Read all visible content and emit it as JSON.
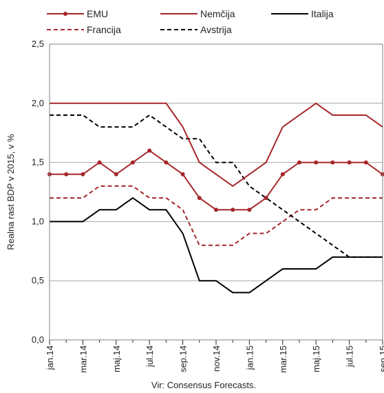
{
  "chart_data": {
    "type": "line",
    "categories": [
      "jan.14",
      "feb.14",
      "mar.14",
      "apr.14",
      "maj.14",
      "jun.14",
      "jul.14",
      "avg.14",
      "sep.14",
      "okt.14",
      "nov.14",
      "dec.14",
      "jan.15",
      "feb.15",
      "mar.15",
      "apr.15",
      "maj.15",
      "jun.15",
      "jul.15",
      "avg.15",
      "sep.15"
    ],
    "tick_labels": [
      "jan.14",
      "mar.14",
      "maj.14",
      "jul.14",
      "sep.14",
      "nov.14",
      "jan.15",
      "mar.15",
      "maj.15",
      "jul.15",
      "sep.15"
    ],
    "ylabel": "Realna rast BDP v 2015, v %",
    "ylim": [
      0,
      2.5
    ],
    "yticks": [
      "0,0",
      "0,5",
      "1,0",
      "1,5",
      "2,0",
      "2,5"
    ],
    "grid": true,
    "legend_position": "top",
    "source": "Vir: Consensus Forecasts.",
    "series": [
      {
        "name": "EMU",
        "color": "#a6262a",
        "style": "solid-markers",
        "values": [
          1.4,
          1.4,
          1.4,
          1.5,
          1.4,
          1.5,
          1.6,
          1.5,
          1.4,
          1.2,
          1.1,
          1.1,
          1.1,
          1.2,
          1.4,
          1.5,
          1.5,
          1.5,
          1.5,
          1.5,
          1.4
        ]
      },
      {
        "name": "Nemčija",
        "color": "#a6262a",
        "style": "solid",
        "values": [
          2.0,
          2.0,
          2.0,
          2.0,
          2.0,
          2.0,
          2.0,
          2.0,
          1.8,
          1.5,
          1.4,
          1.3,
          1.4,
          1.5,
          1.8,
          1.9,
          2.0,
          1.9,
          1.9,
          1.9,
          1.8
        ]
      },
      {
        "name": "Italija",
        "color": "#000000",
        "style": "solid",
        "values": [
          1.0,
          1.0,
          1.0,
          1.1,
          1.1,
          1.2,
          1.1,
          1.1,
          0.9,
          0.5,
          0.5,
          0.4,
          0.4,
          0.5,
          0.6,
          0.6,
          0.6,
          0.7,
          0.7,
          0.7,
          0.7
        ]
      },
      {
        "name": "Francija",
        "color": "#a6262a",
        "style": "dashed",
        "values": [
          1.2,
          1.2,
          1.2,
          1.3,
          1.3,
          1.3,
          1.2,
          1.2,
          1.1,
          0.8,
          0.8,
          0.8,
          0.9,
          0.9,
          1.0,
          1.1,
          1.1,
          1.2,
          1.2,
          1.2,
          1.2
        ]
      },
      {
        "name": "Avstrija",
        "color": "#000000",
        "style": "dashed",
        "values": [
          1.9,
          1.9,
          1.9,
          1.8,
          1.8,
          1.8,
          1.9,
          1.8,
          1.7,
          1.7,
          1.5,
          1.5,
          1.3,
          1.2,
          1.1,
          1.0,
          0.9,
          0.8,
          0.7,
          0.7,
          0.7
        ]
      }
    ]
  }
}
